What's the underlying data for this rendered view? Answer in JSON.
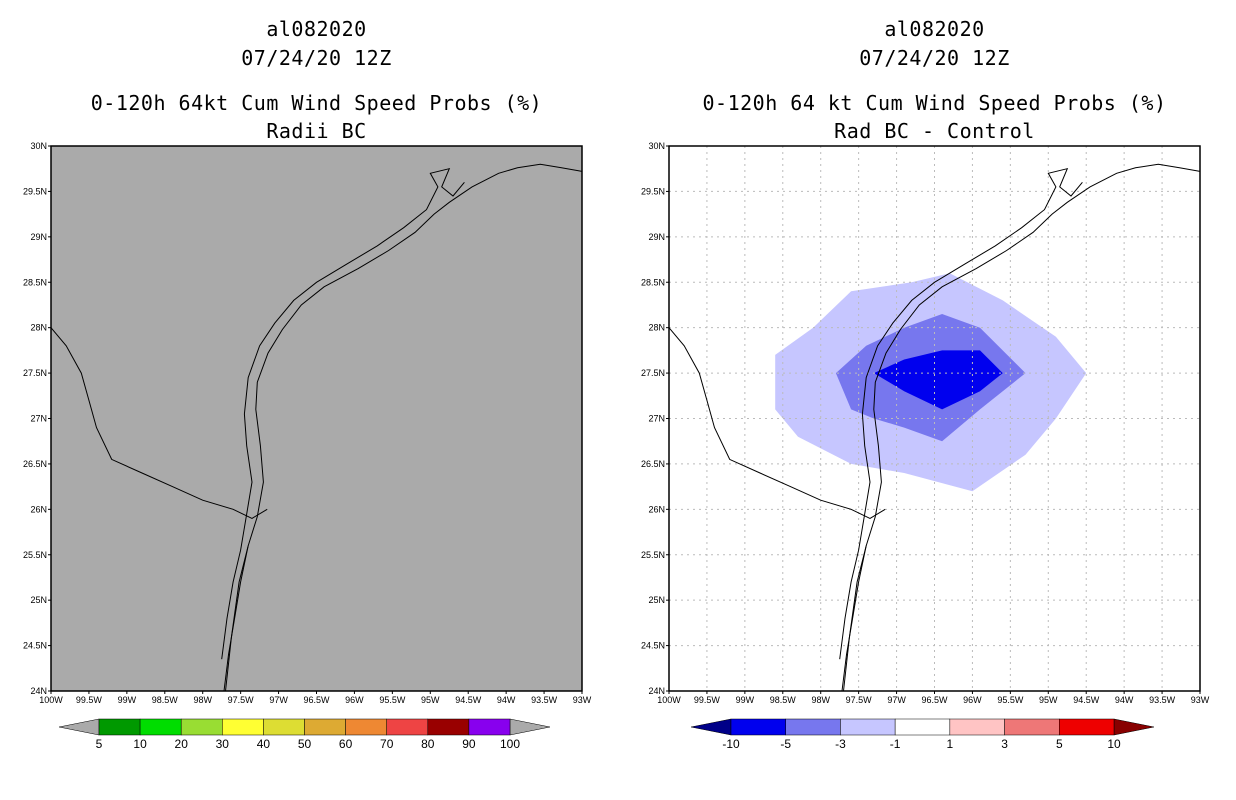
{
  "left": {
    "storm_id": "al082020",
    "datetime": "07/24/20 12Z",
    "title_line1": "0-120h 64kt Cum Wind Speed Probs (%)",
    "title_line2": "Radii BC",
    "background_color": "#aaaaaa",
    "colorbar": {
      "colors": [
        "#009900",
        "#00dd00",
        "#99dd33",
        "#ffff33",
        "#dddd33",
        "#ddaa33",
        "#ee8833",
        "#ee4444",
        "#990000",
        "#8800ee"
      ],
      "labels": [
        "5",
        "10",
        "20",
        "30",
        "40",
        "50",
        "60",
        "70",
        "80",
        "90",
        "100"
      ],
      "end_color": "#aaaaaa"
    }
  },
  "right": {
    "storm_id": "al082020",
    "datetime": "07/24/20 12Z",
    "title_line1": "0-120h 64 kt Cum Wind Speed Probs (%)",
    "title_line2": "Rad BC - Control",
    "background_color": "#ffffff",
    "colorbar": {
      "colors": [
        "#0000ee",
        "#7777ee",
        "#c6c6ff",
        "#ffffff",
        "#ffc4c4",
        "#ee7777",
        "#ee0000"
      ],
      "labels": [
        "-10",
        "-5",
        "-3",
        "-1",
        "1",
        "3",
        "5",
        "10"
      ],
      "low_end_color": "#000088",
      "high_end_color": "#880000"
    }
  },
  "axes": {
    "lon_labels": [
      "100W",
      "99.5W",
      "99W",
      "98.5W",
      "98W",
      "97.5W",
      "97W",
      "96.5W",
      "96W",
      "95.5W",
      "95W",
      "94.5W",
      "94W",
      "93.5W",
      "93W"
    ],
    "lat_labels": [
      "30N",
      "29.5N",
      "29N",
      "28.5N",
      "28N",
      "27.5N",
      "27N",
      "26.5N",
      "26N",
      "25.5N",
      "25N",
      "24.5N",
      "24N"
    ],
    "lon_range": [
      -100,
      -93
    ],
    "lat_range": [
      24,
      30
    ]
  },
  "contours": [
    {
      "level": "-1 to -3",
      "color": "#c6c6ff",
      "points": [
        [
          -98.6,
          27.7
        ],
        [
          -98.1,
          28.0
        ],
        [
          -97.6,
          28.4
        ],
        [
          -96.8,
          28.5
        ],
        [
          -96.3,
          28.6
        ],
        [
          -95.6,
          28.3
        ],
        [
          -94.9,
          27.9
        ],
        [
          -94.5,
          27.5
        ],
        [
          -94.9,
          27.0
        ],
        [
          -95.3,
          26.6
        ],
        [
          -96.0,
          26.2
        ],
        [
          -96.9,
          26.4
        ],
        [
          -97.6,
          26.5
        ],
        [
          -98.3,
          26.8
        ],
        [
          -98.6,
          27.1
        ]
      ]
    },
    {
      "level": "-3 to -5",
      "color": "#7777ee",
      "points": [
        [
          -97.8,
          27.5
        ],
        [
          -97.4,
          27.8
        ],
        [
          -96.9,
          28.0
        ],
        [
          -96.4,
          28.15
        ],
        [
          -95.9,
          28.0
        ],
        [
          -95.3,
          27.5
        ],
        [
          -95.9,
          27.1
        ],
        [
          -96.4,
          26.75
        ],
        [
          -96.9,
          26.9
        ],
        [
          -97.3,
          27.0
        ],
        [
          -97.6,
          27.1
        ]
      ]
    },
    {
      "level": "-5 to -10",
      "color": "#0000ee",
      "points": [
        [
          -97.3,
          27.5
        ],
        [
          -96.9,
          27.65
        ],
        [
          -96.4,
          27.75
        ],
        [
          -95.9,
          27.75
        ],
        [
          -95.6,
          27.5
        ],
        [
          -95.9,
          27.3
        ],
        [
          -96.4,
          27.1
        ],
        [
          -96.9,
          27.3
        ]
      ]
    }
  ]
}
